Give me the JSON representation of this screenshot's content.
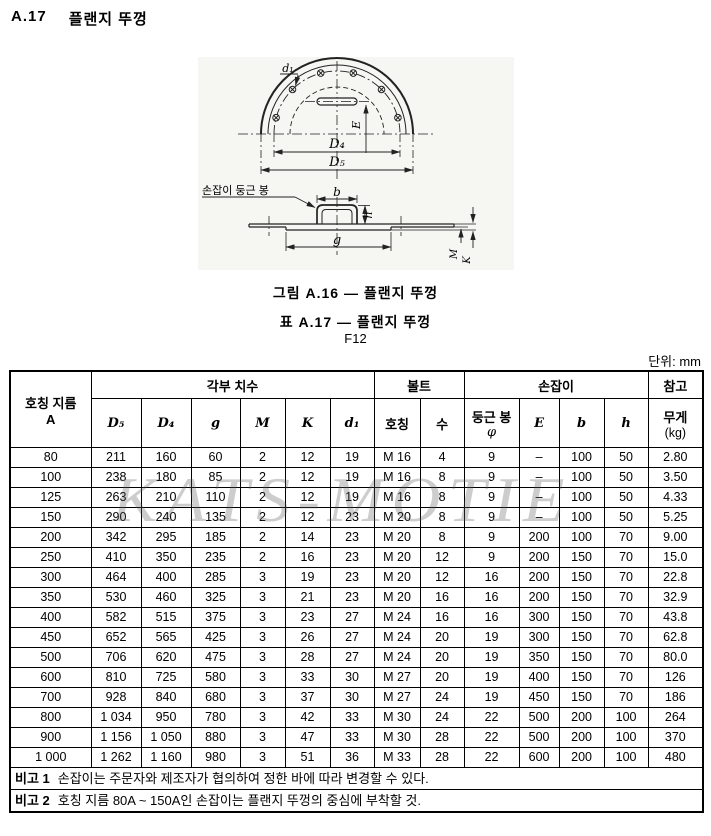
{
  "page": {
    "section_number": "A.17",
    "section_title": "플랜지 뚜껑",
    "figure_caption": "그림  A.16 — 플랜지 뚜껑",
    "table_caption": "표  A.17 — 플랜지 뚜껑",
    "table_subcaption": "F12",
    "unit_label": "단위: mm",
    "watermark": "KATS-MOTIE"
  },
  "figure": {
    "labels": {
      "d1": "d₁",
      "E": "E",
      "D4": "D₄",
      "D5": "D₅",
      "handle": "손잡이 둥근 봉",
      "b": "b",
      "h": "h",
      "g": "g",
      "M": "M",
      "K": "K"
    }
  },
  "table": {
    "header": {
      "nominal_diameter_line1": "호칭 지름",
      "nominal_diameter_line2": "A",
      "group_dimensions": "각부 치수",
      "group_bolt": "볼트",
      "group_handle": "손잡이",
      "group_reference": "참고",
      "sub": {
        "d5": "D₅",
        "d4": "D₄",
        "g": "g",
        "m": "M",
        "k": "K",
        "d1": "d₁",
        "bolt_name": "호칭",
        "bolt_count": "수",
        "round_bar_line1": "둥근 봉",
        "round_bar_line2": "φ",
        "e": "E",
        "b": "b",
        "h": "h",
        "weight_line1": "무게",
        "weight_line2": "(kg)"
      }
    },
    "rows": [
      [
        "80",
        "211",
        "160",
        "60",
        "2",
        "12",
        "19",
        "M 16",
        "4",
        "9",
        "–",
        "100",
        "50",
        "2.80"
      ],
      [
        "100",
        "238",
        "180",
        "85",
        "2",
        "12",
        "19",
        "M 16",
        "8",
        "9",
        "–",
        "100",
        "50",
        "3.50"
      ],
      [
        "125",
        "263",
        "210",
        "110",
        "2",
        "12",
        "19",
        "M 16",
        "8",
        "9",
        "–",
        "100",
        "50",
        "4.33"
      ],
      [
        "150",
        "290",
        "240",
        "135",
        "2",
        "12",
        "23",
        "M 20",
        "8",
        "9",
        "–",
        "100",
        "50",
        "5.25"
      ],
      [
        "200",
        "342",
        "295",
        "185",
        "2",
        "14",
        "23",
        "M 20",
        "8",
        "9",
        "200",
        "100",
        "70",
        "9.00"
      ],
      [
        "250",
        "410",
        "350",
        "235",
        "2",
        "16",
        "23",
        "M 20",
        "12",
        "9",
        "200",
        "150",
        "70",
        "15.0"
      ],
      [
        "300",
        "464",
        "400",
        "285",
        "3",
        "19",
        "23",
        "M 20",
        "12",
        "16",
        "200",
        "150",
        "70",
        "22.8"
      ],
      [
        "350",
        "530",
        "460",
        "325",
        "3",
        "21",
        "23",
        "M 20",
        "16",
        "16",
        "200",
        "150",
        "70",
        "32.9"
      ],
      [
        "400",
        "582",
        "515",
        "375",
        "3",
        "23",
        "27",
        "M 24",
        "16",
        "16",
        "300",
        "150",
        "70",
        "43.8"
      ],
      [
        "450",
        "652",
        "565",
        "425",
        "3",
        "26",
        "27",
        "M 24",
        "20",
        "19",
        "300",
        "150",
        "70",
        "62.8"
      ],
      [
        "500",
        "706",
        "620",
        "475",
        "3",
        "28",
        "27",
        "M 24",
        "20",
        "19",
        "350",
        "150",
        "70",
        "80.0"
      ],
      [
        "600",
        "810",
        "725",
        "580",
        "3",
        "33",
        "30",
        "M 27",
        "20",
        "19",
        "400",
        "150",
        "70",
        "126"
      ],
      [
        "700",
        "928",
        "840",
        "680",
        "3",
        "37",
        "30",
        "M 27",
        "24",
        "19",
        "450",
        "150",
        "70",
        "186"
      ],
      [
        "800",
        "1 034",
        "950",
        "780",
        "3",
        "42",
        "33",
        "M 30",
        "24",
        "22",
        "500",
        "200",
        "100",
        "264"
      ],
      [
        "900",
        "1 156",
        "1 050",
        "880",
        "3",
        "47",
        "33",
        "M 30",
        "28",
        "22",
        "500",
        "200",
        "100",
        "370"
      ],
      [
        "1 000",
        "1 262",
        "1 160",
        "980",
        "3",
        "51",
        "36",
        "M 33",
        "28",
        "22",
        "600",
        "200",
        "100",
        "480"
      ]
    ],
    "notes": [
      {
        "label": "비고 1",
        "text": "손잡이는 주문자와 제조자가 협의하여 정한 바에 따라 변경할 수 있다."
      },
      {
        "label": "비고 2",
        "text": "호칭 지름 80A ~ 150A인 손잡이는 플랜지 뚜껑의 중심에 부착할 것."
      }
    ]
  }
}
